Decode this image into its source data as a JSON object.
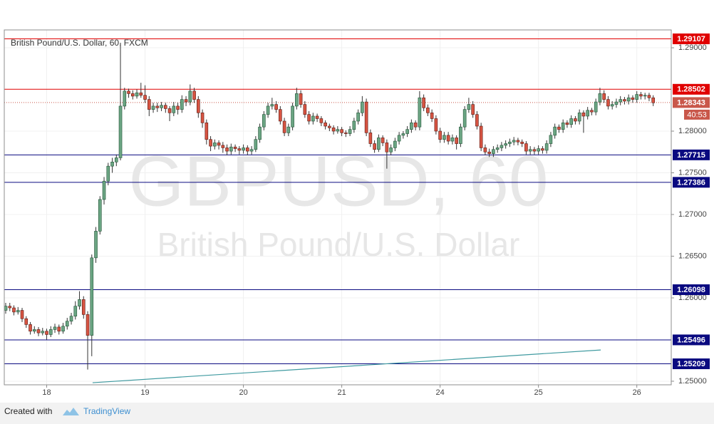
{
  "chart_data": {
    "type": "candlestick",
    "title": "British Pound/U.S. Dollar, 60, FXCM",
    "watermark": "GBPUSD, 60",
    "watermark_subtitle": "British Pound/U.S. Dollar",
    "up_color": "#6ba583",
    "down_color": "#d75442",
    "wick_color": "#333333",
    "xlim": [
      -0.35,
      162.4
    ],
    "xticks": [
      {
        "value": 10,
        "label": "18"
      },
      {
        "value": 34,
        "label": "19"
      },
      {
        "value": 58,
        "label": "20"
      },
      {
        "value": 82,
        "label": "21"
      },
      {
        "value": 106,
        "label": "24"
      },
      {
        "value": 130,
        "label": "25"
      },
      {
        "value": 154,
        "label": "26"
      }
    ],
    "ylim": [
      1.24957,
      1.29214
    ],
    "yticks": [
      {
        "value": 1.29,
        "label": "1.29000"
      },
      {
        "value": 1.28,
        "label": "1.28000"
      },
      {
        "value": 1.275,
        "label": "1.27500"
      },
      {
        "value": 1.27,
        "label": "1.27000"
      },
      {
        "value": 1.265,
        "label": "1.26500"
      },
      {
        "value": 1.26,
        "label": "1.26000"
      },
      {
        "value": 1.25,
        "label": "1.25000"
      }
    ],
    "grid": true,
    "levels": [
      {
        "value": 1.29107,
        "color": "#e00000"
      },
      {
        "value": 1.28502,
        "color": "#e00000"
      },
      {
        "value": 1.27715,
        "color": "#0a0a80"
      },
      {
        "value": 1.27386,
        "color": "#0a0a80"
      },
      {
        "value": 1.26098,
        "color": "#0a0a80"
      },
      {
        "value": 1.25496,
        "color": "#0a0a80"
      },
      {
        "value": 1.25209,
        "color": "#0a0a80"
      }
    ],
    "last_price": 1.28343,
    "last_price_color": "#c9574a",
    "countdown": "40:53",
    "trendline": {
      "x": [
        21.2,
        145.2
      ],
      "y": [
        1.24982,
        1.25375
      ],
      "color": "#3f9aa0"
    },
    "ohlc": [
      [
        1.2585,
        1.2594,
        1.2581,
        1.259
      ],
      [
        1.259,
        1.2594,
        1.2584,
        1.2588
      ],
      [
        1.2588,
        1.2591,
        1.2579,
        1.2583
      ],
      [
        1.2583,
        1.2589,
        1.258,
        1.2585
      ],
      [
        1.2585,
        1.2588,
        1.2571,
        1.2575
      ],
      [
        1.2575,
        1.2578,
        1.2564,
        1.2568
      ],
      [
        1.2568,
        1.2571,
        1.2556,
        1.256
      ],
      [
        1.256,
        1.2566,
        1.2557,
        1.2562
      ],
      [
        1.2562,
        1.2565,
        1.2554,
        1.2558
      ],
      [
        1.2558,
        1.2564,
        1.2555,
        1.256
      ],
      [
        1.256,
        1.2563,
        1.255,
        1.2556
      ],
      [
        1.2556,
        1.2566,
        1.2553,
        1.2562
      ],
      [
        1.2562,
        1.2569,
        1.2558,
        1.2565
      ],
      [
        1.2565,
        1.2568,
        1.2556,
        1.256
      ],
      [
        1.256,
        1.257,
        1.2557,
        1.2566
      ],
      [
        1.2566,
        1.2576,
        1.2562,
        1.2572
      ],
      [
        1.2572,
        1.2582,
        1.2568,
        1.2578
      ],
      [
        1.2578,
        1.2596,
        1.2574,
        1.259
      ],
      [
        1.259,
        1.2608,
        1.2586,
        1.2598
      ],
      [
        1.2598,
        1.2602,
        1.2575,
        1.258
      ],
      [
        1.258,
        1.2584,
        1.2514,
        1.2555
      ],
      [
        1.2555,
        1.2652,
        1.253,
        1.2648
      ],
      [
        1.2648,
        1.2685,
        1.2642,
        1.268
      ],
      [
        1.268,
        1.2722,
        1.2676,
        1.2718
      ],
      [
        1.2718,
        1.2745,
        1.2712,
        1.274
      ],
      [
        1.274,
        1.2762,
        1.2735,
        1.2758
      ],
      [
        1.2758,
        1.2768,
        1.275,
        1.2763
      ],
      [
        1.2763,
        1.2772,
        1.2758,
        1.2768
      ],
      [
        1.2768,
        1.2906,
        1.2765,
        1.283
      ],
      [
        1.283,
        1.2852,
        1.2826,
        1.2848
      ],
      [
        1.2848,
        1.2851,
        1.284,
        1.2845
      ],
      [
        1.2845,
        1.2849,
        1.2838,
        1.2842
      ],
      [
        1.2842,
        1.285,
        1.2839,
        1.2846
      ],
      [
        1.2846,
        1.2858,
        1.284,
        1.2843
      ],
      [
        1.2843,
        1.2855,
        1.2834,
        1.2838
      ],
      [
        1.2838,
        1.2842,
        1.2818,
        1.2826
      ],
      [
        1.2826,
        1.2834,
        1.2822,
        1.283
      ],
      [
        1.283,
        1.2834,
        1.2823,
        1.2828
      ],
      [
        1.2828,
        1.2835,
        1.2824,
        1.2831
      ],
      [
        1.2831,
        1.2834,
        1.2822,
        1.2827
      ],
      [
        1.2827,
        1.283,
        1.2812,
        1.2822
      ],
      [
        1.2822,
        1.2835,
        1.2818,
        1.283
      ],
      [
        1.283,
        1.2834,
        1.282,
        1.2826
      ],
      [
        1.2826,
        1.2843,
        1.2822,
        1.2838
      ],
      [
        1.2838,
        1.2842,
        1.283,
        1.2835
      ],
      [
        1.2835,
        1.2856,
        1.2831,
        1.2848
      ],
      [
        1.2848,
        1.2852,
        1.2834,
        1.2838
      ],
      [
        1.2838,
        1.2842,
        1.2816,
        1.2822
      ],
      [
        1.2822,
        1.2826,
        1.2804,
        1.281
      ],
      [
        1.281,
        1.2814,
        1.2784,
        1.279
      ],
      [
        1.279,
        1.2794,
        1.2776,
        1.2782
      ],
      [
        1.2782,
        1.279,
        1.2778,
        1.2786
      ],
      [
        1.2786,
        1.2789,
        1.2778,
        1.2783
      ],
      [
        1.2783,
        1.2787,
        1.2774,
        1.278
      ],
      [
        1.278,
        1.2784,
        1.2771,
        1.2776
      ],
      [
        1.2776,
        1.2785,
        1.2772,
        1.2781
      ],
      [
        1.2781,
        1.2784,
        1.2775,
        1.2779
      ],
      [
        1.2779,
        1.2782,
        1.2772,
        1.2777
      ],
      [
        1.2777,
        1.2784,
        1.2773,
        1.278
      ],
      [
        1.278,
        1.2783,
        1.2771,
        1.2776
      ],
      [
        1.2776,
        1.2782,
        1.2772,
        1.2778
      ],
      [
        1.2778,
        1.2794,
        1.2775,
        1.279
      ],
      [
        1.279,
        1.2809,
        1.2786,
        1.2805
      ],
      [
        1.2805,
        1.2824,
        1.2801,
        1.282
      ],
      [
        1.282,
        1.2834,
        1.2816,
        1.283
      ],
      [
        1.283,
        1.284,
        1.2826,
        1.2832
      ],
      [
        1.2832,
        1.2836,
        1.2822,
        1.2826
      ],
      [
        1.2826,
        1.283,
        1.2808,
        1.2812
      ],
      [
        1.2812,
        1.2816,
        1.2794,
        1.2798
      ],
      [
        1.2798,
        1.2809,
        1.2794,
        1.2805
      ],
      [
        1.2805,
        1.2834,
        1.2801,
        1.283
      ],
      [
        1.283,
        1.2852,
        1.2826,
        1.2845
      ],
      [
        1.2845,
        1.2849,
        1.2828,
        1.2832
      ],
      [
        1.2832,
        1.2836,
        1.2816,
        1.282
      ],
      [
        1.282,
        1.2824,
        1.2808,
        1.2812
      ],
      [
        1.2812,
        1.2822,
        1.2808,
        1.2818
      ],
      [
        1.2818,
        1.2821,
        1.2811,
        1.2815
      ],
      [
        1.2815,
        1.2818,
        1.2806,
        1.281
      ],
      [
        1.281,
        1.2813,
        1.2802,
        1.2806
      ],
      [
        1.2806,
        1.2809,
        1.28,
        1.2804
      ],
      [
        1.2804,
        1.2807,
        1.2796,
        1.28
      ],
      [
        1.28,
        1.2806,
        1.2797,
        1.2802
      ],
      [
        1.2802,
        1.2805,
        1.2794,
        1.2798
      ],
      [
        1.2798,
        1.2801,
        1.2793,
        1.2797
      ],
      [
        1.2797,
        1.2806,
        1.2794,
        1.2802
      ],
      [
        1.2802,
        1.2816,
        1.2798,
        1.2812
      ],
      [
        1.2812,
        1.2826,
        1.2808,
        1.2822
      ],
      [
        1.2822,
        1.2842,
        1.2818,
        1.2835
      ],
      [
        1.2835,
        1.2839,
        1.2794,
        1.2798
      ],
      [
        1.2798,
        1.2802,
        1.2781,
        1.2785
      ],
      [
        1.2785,
        1.2789,
        1.2774,
        1.2778
      ],
      [
        1.2778,
        1.2796,
        1.2775,
        1.2792
      ],
      [
        1.2792,
        1.2795,
        1.2782,
        1.2786
      ],
      [
        1.2786,
        1.279,
        1.2755,
        1.2775
      ],
      [
        1.2775,
        1.2784,
        1.2771,
        1.278
      ],
      [
        1.278,
        1.2792,
        1.2776,
        1.2788
      ],
      [
        1.2788,
        1.2799,
        1.2784,
        1.2795
      ],
      [
        1.2795,
        1.28,
        1.2791,
        1.2797
      ],
      [
        1.2797,
        1.2806,
        1.2793,
        1.2802
      ],
      [
        1.2802,
        1.2814,
        1.2798,
        1.281
      ],
      [
        1.281,
        1.2813,
        1.2801,
        1.2805
      ],
      [
        1.2805,
        1.2848,
        1.2801,
        1.284
      ],
      [
        1.284,
        1.2844,
        1.2824,
        1.2828
      ],
      [
        1.2828,
        1.2832,
        1.2818,
        1.2822
      ],
      [
        1.2822,
        1.2826,
        1.2811,
        1.2815
      ],
      [
        1.2815,
        1.2819,
        1.2796,
        1.28
      ],
      [
        1.28,
        1.2804,
        1.2786,
        1.279
      ],
      [
        1.279,
        1.2799,
        1.2786,
        1.2795
      ],
      [
        1.2795,
        1.2799,
        1.2784,
        1.2788
      ],
      [
        1.2788,
        1.2796,
        1.2784,
        1.2792
      ],
      [
        1.2792,
        1.2795,
        1.2778,
        1.2785
      ],
      [
        1.2785,
        1.2809,
        1.2781,
        1.2805
      ],
      [
        1.2805,
        1.283,
        1.2801,
        1.2826
      ],
      [
        1.2826,
        1.284,
        1.2822,
        1.2832
      ],
      [
        1.2832,
        1.2836,
        1.2816,
        1.282
      ],
      [
        1.282,
        1.2824,
        1.2802,
        1.2806
      ],
      [
        1.2806,
        1.281,
        1.2776,
        1.278
      ],
      [
        1.278,
        1.2784,
        1.2771,
        1.2775
      ],
      [
        1.2775,
        1.2779,
        1.2769,
        1.2773
      ],
      [
        1.2773,
        1.2782,
        1.2769,
        1.2778
      ],
      [
        1.2778,
        1.2784,
        1.2774,
        1.278
      ],
      [
        1.278,
        1.2787,
        1.2776,
        1.2783
      ],
      [
        1.2783,
        1.2789,
        1.2779,
        1.2785
      ],
      [
        1.2785,
        1.2791,
        1.2781,
        1.2787
      ],
      [
        1.2787,
        1.2793,
        1.2783,
        1.2789
      ],
      [
        1.2789,
        1.2792,
        1.2783,
        1.2787
      ],
      [
        1.2787,
        1.279,
        1.2781,
        1.2785
      ],
      [
        1.2785,
        1.2788,
        1.2772,
        1.2776
      ],
      [
        1.2776,
        1.2782,
        1.2772,
        1.2778
      ],
      [
        1.2778,
        1.2781,
        1.2772,
        1.2776
      ],
      [
        1.2776,
        1.2783,
        1.2772,
        1.2779
      ],
      [
        1.2779,
        1.2782,
        1.2773,
        1.2777
      ],
      [
        1.2777,
        1.2789,
        1.2773,
        1.2785
      ],
      [
        1.2785,
        1.2799,
        1.2781,
        1.2795
      ],
      [
        1.2795,
        1.2809,
        1.2791,
        1.2805
      ],
      [
        1.2805,
        1.2808,
        1.2798,
        1.2802
      ],
      [
        1.2802,
        1.2814,
        1.2798,
        1.281
      ],
      [
        1.281,
        1.2813,
        1.2804,
        1.2808
      ],
      [
        1.2808,
        1.2819,
        1.2804,
        1.2815
      ],
      [
        1.2815,
        1.2818,
        1.2808,
        1.2812
      ],
      [
        1.2812,
        1.2826,
        1.2808,
        1.2822
      ],
      [
        1.2822,
        1.2825,
        1.2798,
        1.2818
      ],
      [
        1.2818,
        1.2829,
        1.2814,
        1.2825
      ],
      [
        1.2825,
        1.2828,
        1.2819,
        1.2823
      ],
      [
        1.2823,
        1.2839,
        1.2819,
        1.2835
      ],
      [
        1.2835,
        1.2852,
        1.2831,
        1.2845
      ],
      [
        1.2845,
        1.2849,
        1.2834,
        1.2838
      ],
      [
        1.2838,
        1.2842,
        1.2826,
        1.283
      ],
      [
        1.283,
        1.2836,
        1.2826,
        1.2832
      ],
      [
        1.2832,
        1.2839,
        1.2828,
        1.2835
      ],
      [
        1.2835,
        1.2842,
        1.2831,
        1.2838
      ],
      [
        1.2838,
        1.2841,
        1.2832,
        1.2836
      ],
      [
        1.2836,
        1.2844,
        1.2832,
        1.284
      ],
      [
        1.284,
        1.2843,
        1.2834,
        1.2838
      ],
      [
        1.2838,
        1.2848,
        1.2834,
        1.2844
      ],
      [
        1.2844,
        1.2847,
        1.2838,
        1.2842
      ],
      [
        1.2842,
        1.2846,
        1.2838,
        1.2843
      ],
      [
        1.2843,
        1.2846,
        1.2836,
        1.284
      ],
      [
        1.284,
        1.2843,
        1.283,
        1.2834
      ]
    ]
  },
  "footer": {
    "created_with": "Created with",
    "brand": "TradingView"
  }
}
